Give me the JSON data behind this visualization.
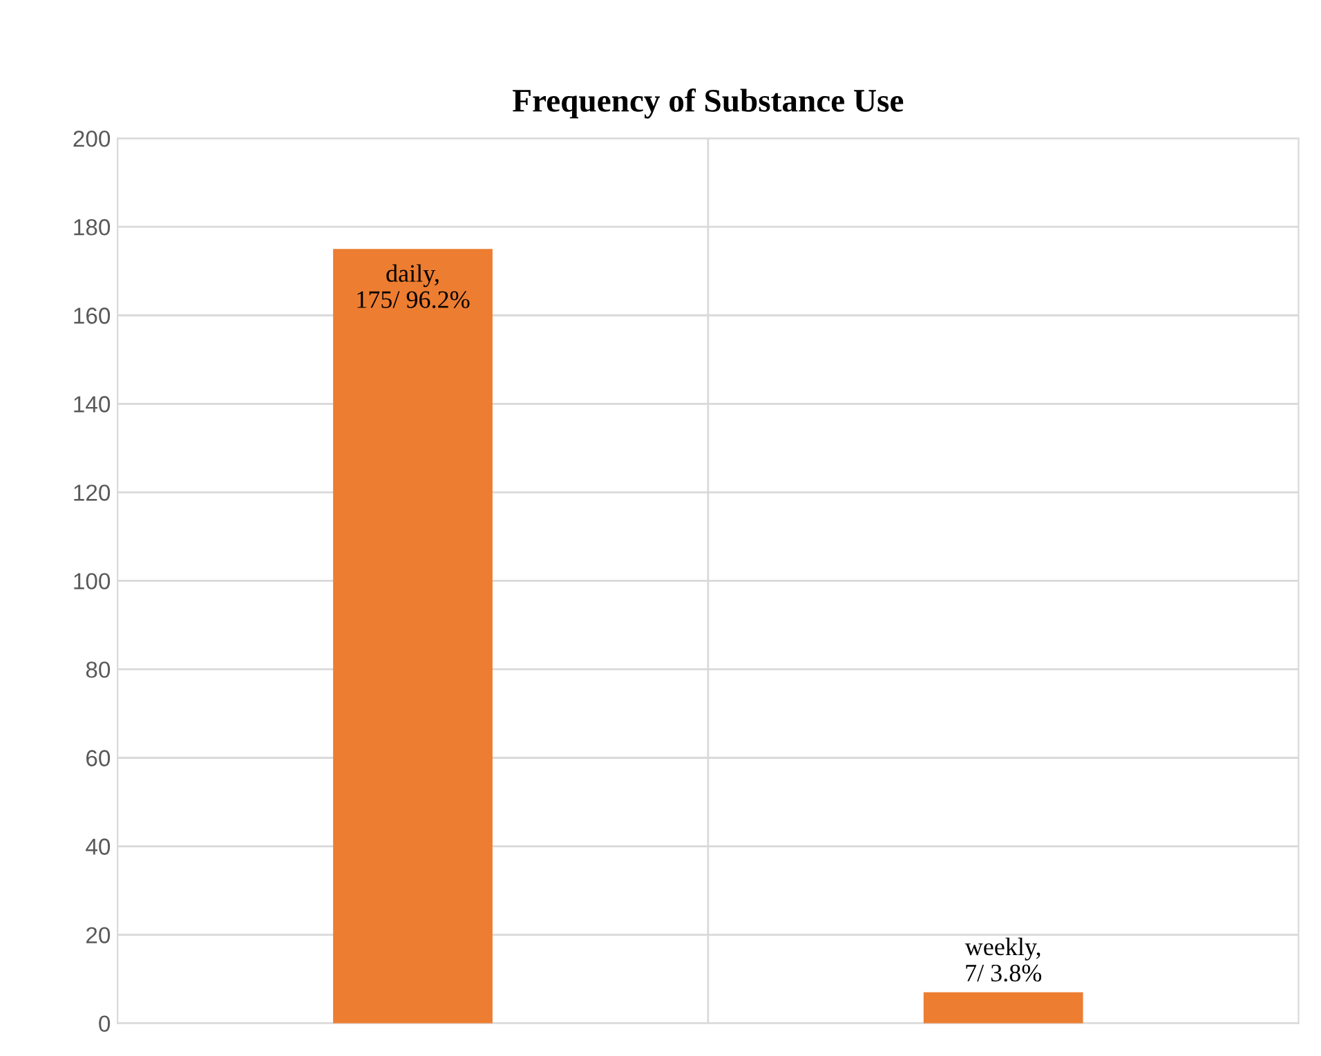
{
  "chart_data": {
    "type": "bar",
    "title": "Frequency of Substance Use",
    "categories": [
      null,
      null
    ],
    "values": [
      175,
      7
    ],
    "value_labels": [
      "daily,\n175/ 96.2%",
      "weekly,\n7/ 3.8%"
    ],
    "color": "#ed7d31",
    "ylim": [
      0,
      200
    ],
    "yticks": [
      0,
      20,
      40,
      60,
      80,
      100,
      120,
      140,
      160,
      180,
      200
    ],
    "grid": true
  }
}
